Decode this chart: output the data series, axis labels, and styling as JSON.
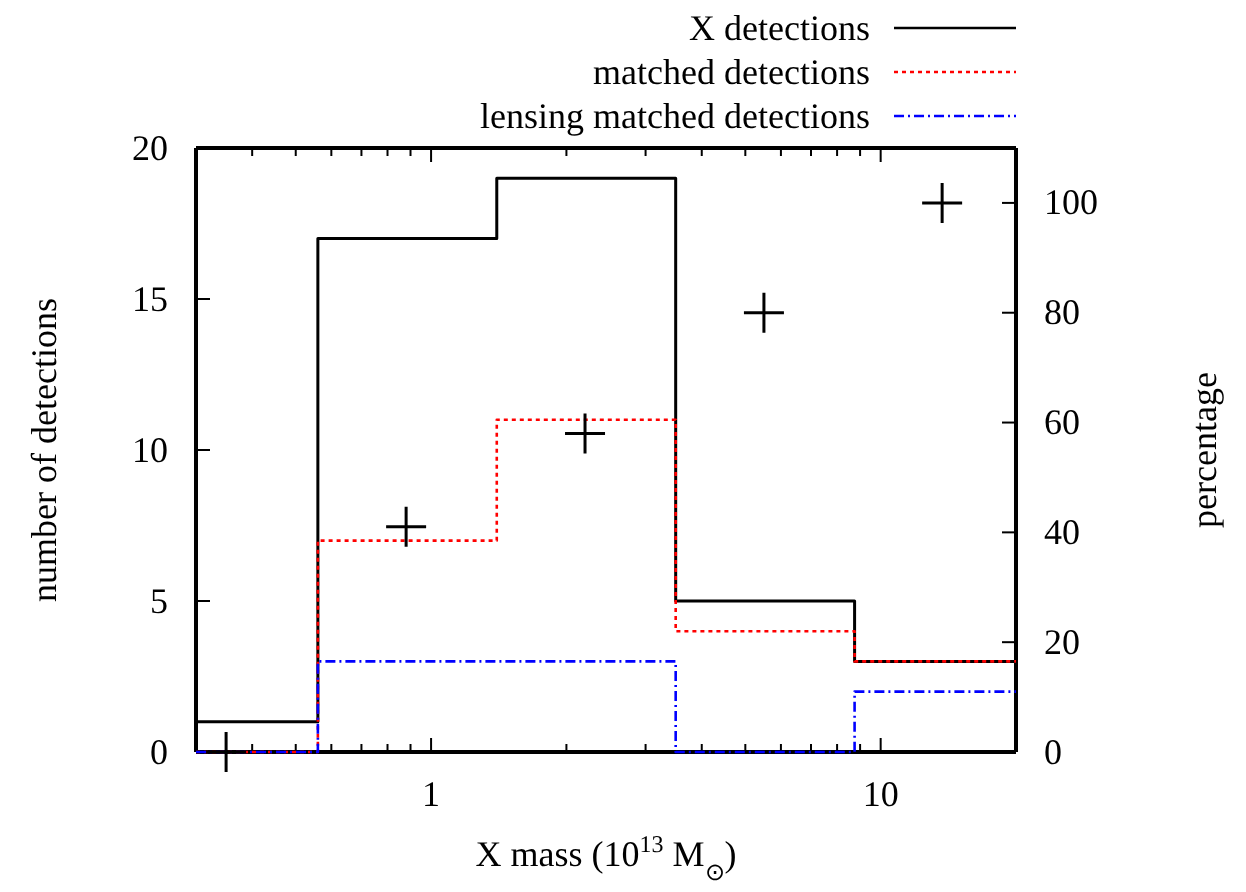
{
  "chart_data": {
    "type": "histogram",
    "xlabel": "X mass (10$^{13}$ M$_{⊙}$)",
    "ylabel": "number of detections",
    "y2label": "percentage",
    "bins": [
      0.3,
      0.56,
      1.4,
      3.5,
      8.75,
      20
    ],
    "series": [
      {
        "name": "X detections",
        "color": "#000000",
        "line_style": "solid",
        "values": [
          1,
          17,
          19,
          5,
          3
        ]
      },
      {
        "name": "matched detections",
        "color": "#ff0000",
        "line_style": "dotted",
        "values": [
          0,
          7,
          11,
          4,
          3
        ]
      },
      {
        "name": "lensing matched detections",
        "color": "#0000ff",
        "line_style": "dashed",
        "values": [
          0,
          3,
          3,
          0,
          2
        ]
      },
      {
        "type": "scatter",
        "axis": "y2",
        "color": "#000000",
        "marker": "cross",
        "x": [
          0.35,
          0.88,
          2.2,
          5.5,
          13.7
        ],
        "values": [
          0,
          41,
          58,
          80,
          100
        ]
      }
    ],
    "log": "x",
    "xlim": [
      0.3,
      20
    ],
    "xticks": [
      {
        "value": 0.3,
        "label": null
      },
      {
        "value": 0.4,
        "label": null
      },
      {
        "value": 0.5,
        "label": null
      },
      {
        "value": 0.6,
        "label": null
      },
      {
        "value": 0.7,
        "label": null
      },
      {
        "value": 0.8,
        "label": null
      },
      {
        "value": 0.9,
        "label": null
      },
      1,
      {
        "value": 2,
        "label": null
      },
      {
        "value": 3,
        "label": null
      },
      {
        "value": 4,
        "label": null
      },
      {
        "value": 5,
        "label": null
      },
      {
        "value": 6,
        "label": null
      },
      {
        "value": 7,
        "label": null
      },
      {
        "value": 8,
        "label": null
      },
      {
        "value": 9,
        "label": null
      },
      10,
      {
        "value": 20,
        "label": null
      }
    ],
    "ylim": [
      0,
      20
    ],
    "yticks": [
      0,
      5,
      10,
      15,
      20
    ],
    "y2lim": [
      0,
      110
    ],
    "y2ticks": [
      0,
      20,
      40,
      60,
      80,
      100
    ],
    "grid": false,
    "legend": "top right"
  }
}
